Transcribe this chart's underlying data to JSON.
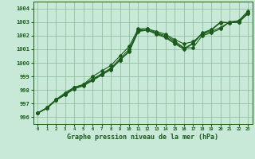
{
  "xlabel": "Graphe pression niveau de la mer (hPa)",
  "xlim": [
    -0.5,
    23.5
  ],
  "ylim": [
    995.5,
    1004.5
  ],
  "yticks": [
    996,
    997,
    998,
    999,
    1000,
    1001,
    1002,
    1003,
    1004
  ],
  "xticks": [
    0,
    1,
    2,
    3,
    4,
    5,
    6,
    7,
    8,
    9,
    10,
    11,
    12,
    13,
    14,
    15,
    16,
    17,
    18,
    19,
    20,
    21,
    22,
    23
  ],
  "bg_color": "#c8e8d8",
  "line_color": "#1a5c1a",
  "grid_color": "#88b898",
  "series1": [
    996.3,
    996.7,
    997.3,
    997.7,
    998.2,
    998.4,
    998.8,
    999.2,
    999.6,
    1000.3,
    1001.0,
    1002.4,
    1002.5,
    1002.2,
    1002.0,
    1001.6,
    1001.1,
    1001.1,
    1002.0,
    1002.2,
    1002.5,
    1003.0,
    1003.05,
    1003.7
  ],
  "series2": [
    996.3,
    996.7,
    997.3,
    997.8,
    998.2,
    998.4,
    999.0,
    999.4,
    999.8,
    1000.5,
    1001.2,
    1002.5,
    1002.5,
    1002.3,
    1002.1,
    1001.7,
    1001.4,
    1001.55,
    1002.1,
    1002.3,
    1002.6,
    1003.0,
    1003.1,
    1003.8
  ],
  "series3": [
    996.3,
    996.65,
    997.25,
    997.65,
    998.1,
    998.35,
    998.75,
    999.15,
    999.55,
    1000.2,
    1000.85,
    1002.35,
    1002.4,
    1002.15,
    1001.9,
    1001.5,
    1001.05,
    1001.45,
    1002.2,
    1002.45,
    1003.0,
    1002.95,
    1003.0,
    1003.65
  ],
  "series4": [
    996.3,
    996.65,
    997.25,
    997.65,
    998.1,
    998.3,
    998.7,
    999.1,
    999.5,
    1000.2,
    1000.8,
    1002.3,
    1002.4,
    1002.1,
    1001.85,
    1001.4,
    1001.0,
    1001.4,
    1002.15,
    1002.4,
    1002.95,
    1002.95,
    1002.98,
    1003.6
  ]
}
